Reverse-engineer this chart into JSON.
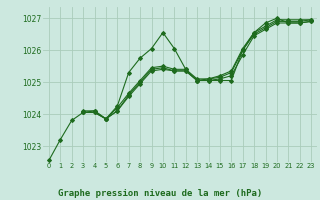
{
  "bg_color": "#cce8df",
  "grid_color": "#aaccbb",
  "line_color": "#1e6b1e",
  "title": "Graphe pression niveau de la mer (hPa)",
  "xlim": [
    -0.5,
    23.5
  ],
  "ylim": [
    1022.5,
    1027.35
  ],
  "yticks": [
    1023,
    1024,
    1025,
    1026,
    1027
  ],
  "xticks": [
    0,
    1,
    2,
    3,
    4,
    5,
    6,
    7,
    8,
    9,
    10,
    11,
    12,
    13,
    14,
    15,
    16,
    17,
    18,
    19,
    20,
    21,
    22,
    23
  ],
  "line1_x": [
    0,
    1,
    2,
    3,
    4,
    5,
    6,
    7,
    8,
    9,
    10,
    11,
    12,
    13,
    14,
    15,
    16,
    17,
    18,
    19,
    20,
    21,
    22,
    23
  ],
  "line1_y": [
    1022.55,
    1023.2,
    1023.8,
    1024.05,
    1024.05,
    1023.85,
    1024.25,
    1025.3,
    1025.75,
    1026.05,
    1026.55,
    1026.05,
    1025.4,
    1025.05,
    1025.05,
    1025.05,
    1025.05,
    1026.0,
    1026.55,
    1026.85,
    1027.0,
    1026.85,
    1026.85,
    1026.9
  ],
  "line2_x": [
    3,
    4,
    5,
    6,
    7,
    8,
    9,
    10,
    11,
    12,
    13,
    14,
    15,
    16,
    17,
    18,
    19,
    20,
    21,
    22,
    23
  ],
  "line2_y": [
    1024.05,
    1024.05,
    1023.85,
    1024.1,
    1024.55,
    1024.95,
    1025.35,
    1025.4,
    1025.35,
    1025.35,
    1025.05,
    1025.05,
    1025.1,
    1025.2,
    1025.85,
    1026.45,
    1026.65,
    1026.85,
    1026.85,
    1026.85,
    1026.9
  ],
  "line3_x": [
    3,
    4,
    5,
    6,
    7,
    8,
    9,
    10,
    11,
    12,
    13,
    14,
    15,
    16,
    17,
    18,
    19,
    20,
    21,
    22,
    23
  ],
  "line3_y": [
    1024.05,
    1024.1,
    1023.85,
    1024.1,
    1024.6,
    1025.0,
    1025.4,
    1025.45,
    1025.35,
    1025.35,
    1025.05,
    1025.1,
    1025.15,
    1025.3,
    1026.0,
    1026.5,
    1026.7,
    1026.9,
    1026.9,
    1026.9,
    1026.95
  ],
  "line4_x": [
    3,
    4,
    5,
    6,
    7,
    8,
    9,
    10,
    11,
    12,
    13,
    14,
    15,
    16,
    17,
    18,
    19,
    20,
    21,
    22,
    23
  ],
  "line4_y": [
    1024.1,
    1024.1,
    1023.85,
    1024.2,
    1024.65,
    1025.05,
    1025.45,
    1025.5,
    1025.4,
    1025.4,
    1025.1,
    1025.1,
    1025.2,
    1025.35,
    1026.05,
    1026.55,
    1026.75,
    1026.95,
    1026.95,
    1026.95,
    1026.95
  ]
}
